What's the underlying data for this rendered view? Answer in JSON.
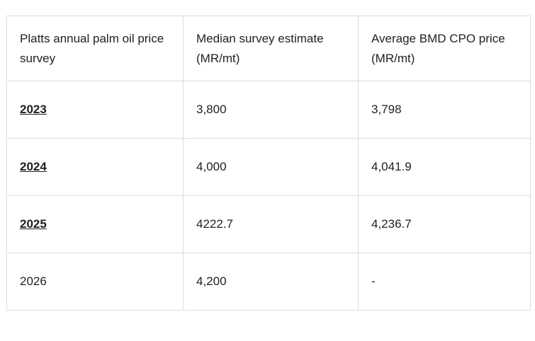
{
  "table": {
    "header": [
      "Platts annual palm oil price survey",
      "Median survey estimate (MR/mt)",
      "Average BMD CPO price (MR/mt)"
    ],
    "rows": [
      [
        "2023",
        "3,800",
        "3,798"
      ],
      [
        "2024",
        "4,000",
        "4,041.9"
      ],
      [
        "2025",
        "4222.7",
        "4,236.7"
      ],
      [
        "2026",
        "4,200",
        "-"
      ]
    ]
  }
}
